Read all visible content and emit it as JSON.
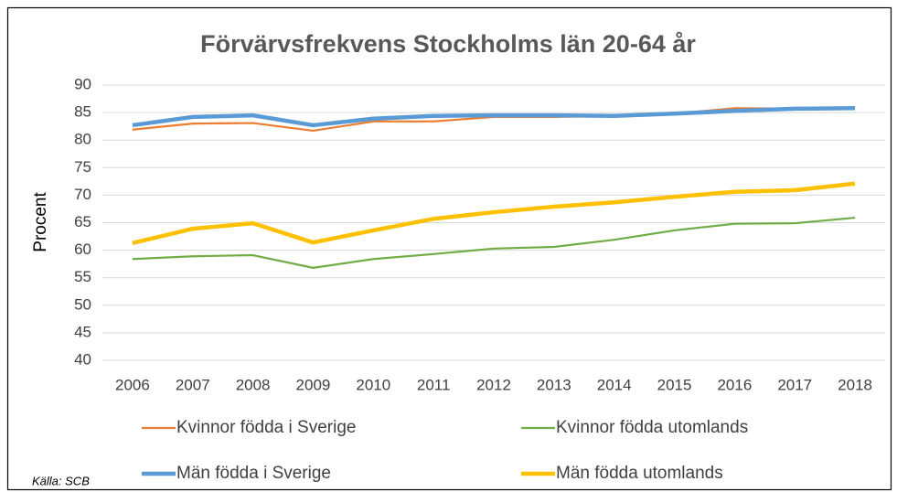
{
  "chart_data": {
    "type": "line",
    "title": "Förvärvsfrekvens Stockholms län 20-64 år",
    "y_label": "Procent",
    "source": "Källa: SCB",
    "categories": [
      "2006",
      "2007",
      "2008",
      "2009",
      "2010",
      "2011",
      "2012",
      "2013",
      "2014",
      "2015",
      "2016",
      "2017",
      "2018"
    ],
    "series": [
      {
        "name": "Kvinnor födda i Sverige",
        "color": "#ed7d31",
        "width": 2.2,
        "values": [
          81.9,
          83.0,
          83.1,
          81.7,
          83.4,
          83.4,
          84.2,
          84.2,
          84.4,
          84.8,
          85.8,
          85.7,
          85.8
        ]
      },
      {
        "name": "Kvinnor födda utomlands",
        "color": "#70ad47",
        "width": 2.2,
        "values": [
          58.4,
          58.9,
          59.1,
          56.8,
          58.4,
          59.3,
          60.3,
          60.6,
          61.9,
          63.6,
          64.8,
          64.9,
          65.9
        ]
      },
      {
        "name": "Män födda i Sverige",
        "color": "#5b9bd5",
        "width": 4.5,
        "values": [
          82.7,
          84.2,
          84.5,
          82.7,
          83.9,
          84.4,
          84.5,
          84.5,
          84.4,
          84.8,
          85.3,
          85.7,
          85.8
        ]
      },
      {
        "name": "Män födda utomlands",
        "color": "#ffc000",
        "width": 4.5,
        "values": [
          61.3,
          63.9,
          64.9,
          61.4,
          63.6,
          65.7,
          66.9,
          67.9,
          68.7,
          69.7,
          70.6,
          70.9,
          72.1
        ]
      }
    ],
    "ylim": [
      40,
      90
    ],
    "yticks": [
      40,
      45,
      50,
      55,
      60,
      65,
      70,
      75,
      80,
      85,
      90
    ],
    "grid": true,
    "legend": "bottom"
  }
}
